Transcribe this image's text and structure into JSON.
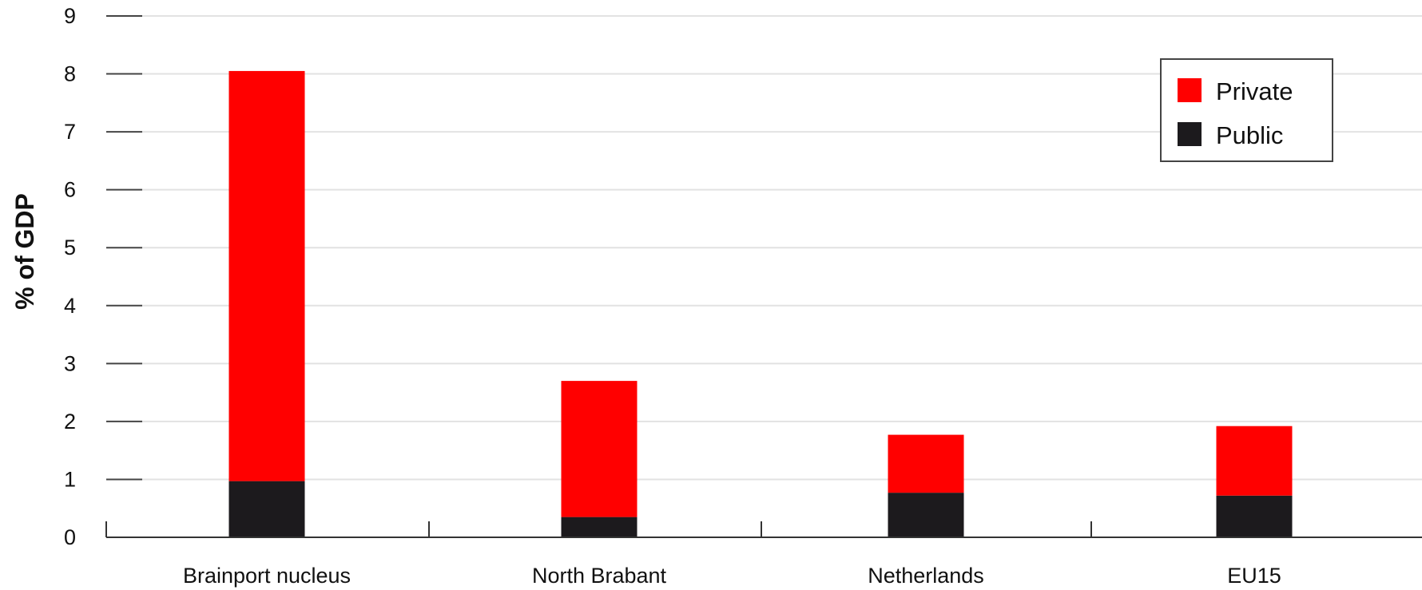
{
  "chart_data": {
    "type": "bar",
    "stacked": true,
    "title": "",
    "xlabel": "",
    "ylabel": "% of GDP",
    "ylim": [
      0,
      9
    ],
    "yticks": [
      "0",
      "1",
      "2",
      "3",
      "4",
      "5",
      "6",
      "7",
      "8",
      "9"
    ],
    "grid": true,
    "legend_position": "top-right",
    "categories": [
      "Brainport nucleus",
      "North Brabant",
      "Netherlands",
      "EU15"
    ],
    "series": [
      {
        "name": "Public",
        "color": "#1c1a1d",
        "values": [
          0.97,
          0.35,
          0.77,
          0.72
        ]
      },
      {
        "name": "Private",
        "color": "#ff0000",
        "values": [
          7.08,
          2.35,
          1.0,
          1.2
        ]
      }
    ]
  }
}
